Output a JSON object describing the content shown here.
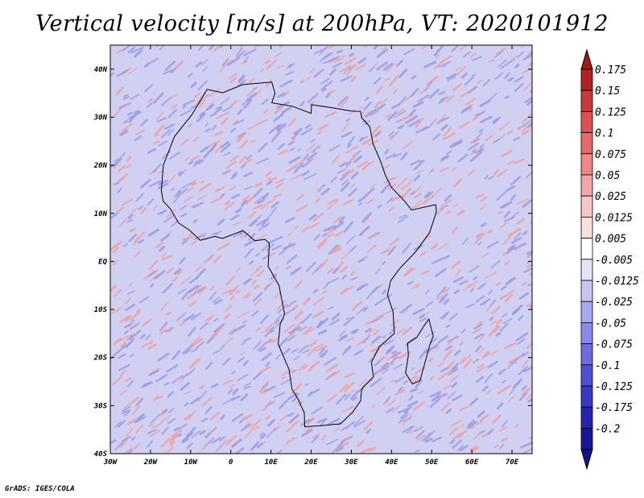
{
  "title": "Vertical velocity [m/s] at 200hPa, VT: 2020101912",
  "credit": "GrADS: IGES/COLA",
  "map": {
    "lon_range": [
      -30,
      75
    ],
    "lat_range": [
      -40,
      45
    ],
    "lon_ticks": [
      {
        "value": -30,
        "label": "30W"
      },
      {
        "value": -20,
        "label": "20W"
      },
      {
        "value": -10,
        "label": "10W"
      },
      {
        "value": 0,
        "label": "0"
      },
      {
        "value": 10,
        "label": "10E"
      },
      {
        "value": 20,
        "label": "20E"
      },
      {
        "value": 30,
        "label": "30E"
      },
      {
        "value": 40,
        "label": "40E"
      },
      {
        "value": 50,
        "label": "50E"
      },
      {
        "value": 60,
        "label": "60E"
      },
      {
        "value": 70,
        "label": "70E"
      }
    ],
    "lat_ticks": [
      {
        "value": 40,
        "label": "40N"
      },
      {
        "value": 30,
        "label": "30N"
      },
      {
        "value": 20,
        "label": "20N"
      },
      {
        "value": 10,
        "label": "10N"
      },
      {
        "value": 0,
        "label": "EQ"
      },
      {
        "value": -10,
        "label": "10S"
      },
      {
        "value": -20,
        "label": "20S"
      },
      {
        "value": -30,
        "label": "30S"
      },
      {
        "value": -40,
        "label": "40S"
      }
    ],
    "outline": [
      [
        -17.3,
        14.7
      ],
      [
        -16.8,
        20
      ],
      [
        -14,
        26
      ],
      [
        -9.7,
        30.5
      ],
      [
        -5.9,
        35.8
      ],
      [
        -2,
        35.1
      ],
      [
        3,
        36.8
      ],
      [
        10.2,
        37.3
      ],
      [
        11,
        35
      ],
      [
        10.2,
        33
      ],
      [
        15.3,
        32.3
      ],
      [
        20,
        30.8
      ],
      [
        20.1,
        32.6
      ],
      [
        25,
        32
      ],
      [
        29.9,
        31.3
      ],
      [
        32.3,
        31.2
      ],
      [
        32.6,
        29.9
      ],
      [
        34.6,
        28
      ],
      [
        35.4,
        24.5
      ],
      [
        37.2,
        21
      ],
      [
        38.5,
        17.9
      ],
      [
        39.9,
        15.5
      ],
      [
        43.2,
        12.6
      ],
      [
        45,
        10.7
      ],
      [
        51,
        11.8
      ],
      [
        51.2,
        10.4
      ],
      [
        49.5,
        6
      ],
      [
        46,
        2
      ],
      [
        42,
        -1.5
      ],
      [
        39.8,
        -4
      ],
      [
        39,
        -7
      ],
      [
        40.4,
        -10.5
      ],
      [
        40.7,
        -15
      ],
      [
        36.9,
        -17.8
      ],
      [
        35,
        -21
      ],
      [
        35.5,
        -24
      ],
      [
        32.6,
        -26.5
      ],
      [
        32.3,
        -29
      ],
      [
        30.4,
        -31.3
      ],
      [
        27.3,
        -33.8
      ],
      [
        22,
        -34.2
      ],
      [
        18.4,
        -34.4
      ],
      [
        18.3,
        -31.5
      ],
      [
        16.7,
        -28.6
      ],
      [
        15.2,
        -26.5
      ],
      [
        14.5,
        -22.5
      ],
      [
        11.8,
        -17.2
      ],
      [
        12.3,
        -13
      ],
      [
        13.4,
        -11
      ],
      [
        12,
        -5
      ],
      [
        9.3,
        -1
      ],
      [
        9.6,
        3.8
      ],
      [
        8.5,
        4.6
      ],
      [
        6,
        4.3
      ],
      [
        3,
        6.4
      ],
      [
        -2,
        4.8
      ],
      [
        -4,
        5.2
      ],
      [
        -7.6,
        4.4
      ],
      [
        -10.3,
        6.5
      ],
      [
        -13,
        8
      ],
      [
        -15.1,
        11
      ],
      [
        -16.8,
        12.5
      ],
      [
        -17.3,
        14.7
      ]
    ],
    "madagascar": [
      [
        49.3,
        -12
      ],
      [
        50.4,
        -15.5
      ],
      [
        49.5,
        -17.5
      ],
      [
        47.1,
        -24.8
      ],
      [
        45.2,
        -25.5
      ],
      [
        43.5,
        -23.2
      ],
      [
        44.2,
        -19.5
      ],
      [
        44,
        -17
      ],
      [
        46.3,
        -15.8
      ],
      [
        48,
        -13.5
      ],
      [
        49.3,
        -12
      ]
    ]
  },
  "colorbar": {
    "levels": [
      "0.175",
      "0.15",
      "0.125",
      "0.1",
      "0.075",
      "0.05",
      "0.025",
      "0.0125",
      "0.005",
      "-0.005",
      "-0.0125",
      "-0.025",
      "-0.05",
      "-0.075",
      "-0.1",
      "-0.125",
      "-0.175",
      "-0.2"
    ],
    "colors": [
      "#b22222",
      "#c93a3a",
      "#dc5050",
      "#e66a6a",
      "#ef8787",
      "#f4a5a5",
      "#f8c4c4",
      "#fbe0e0",
      "#ffffff",
      "#e3e3fb",
      "#c5c5f6",
      "#a8a8f0",
      "#8a8ae8",
      "#6c6cdf",
      "#4f4fd4",
      "#3838c4",
      "#2323b0",
      "#161699"
    ],
    "top_arrow_color": "#a01818",
    "bottom_arrow_color": "#14148a"
  },
  "colors": {
    "ocean_base": "#d0d0f2",
    "positive": "#f0a0a0",
    "negative": "#9a9ae6",
    "coast": "#000000"
  }
}
